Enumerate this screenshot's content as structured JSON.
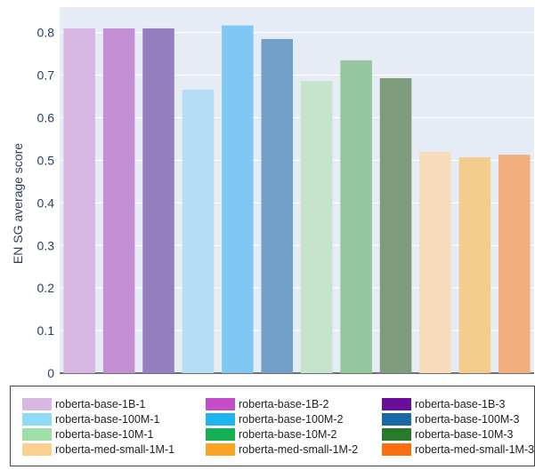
{
  "chart_data": {
    "type": "bar",
    "xlabel": "",
    "ylabel": "EN SG average score",
    "ylim": [
      0,
      0.86
    ],
    "yticks": [
      "0",
      "0.1",
      "0.2",
      "0.3",
      "0.4",
      "0.5",
      "0.6",
      "0.7",
      "0.8"
    ],
    "grid": true,
    "legend_position": "bottom",
    "series": [
      {
        "name": "roberta-base-1B-1",
        "value": 0.81,
        "color": "#d8b7e2"
      },
      {
        "name": "roberta-base-1B-2",
        "value": 0.81,
        "color": "#c58fd6"
      },
      {
        "name": "roberta-base-1B-3",
        "value": 0.81,
        "color": "#9480c1"
      },
      {
        "name": "roberta-base-100M-1",
        "value": 0.666,
        "color": "#b5def5"
      },
      {
        "name": "roberta-base-100M-2",
        "value": 0.817,
        "color": "#7ec8f2"
      },
      {
        "name": "roberta-base-100M-3",
        "value": 0.785,
        "color": "#73a0c9"
      },
      {
        "name": "roberta-base-10M-1",
        "value": 0.686,
        "color": "#c6e4cc"
      },
      {
        "name": "roberta-base-10M-2",
        "value": 0.735,
        "color": "#94c79d"
      },
      {
        "name": "roberta-base-10M-3",
        "value": 0.693,
        "color": "#7e9c7b"
      },
      {
        "name": "roberta-med-small-1M-1",
        "value": 0.52,
        "color": "#f6dcbb"
      },
      {
        "name": "roberta-med-small-1M-2",
        "value": 0.507,
        "color": "#f4cc8c"
      },
      {
        "name": "roberta-med-small-1M-3",
        "value": 0.513,
        "color": "#f2ae7d"
      }
    ]
  },
  "legend": {
    "items": [
      {
        "label": "roberta-base-1B-1",
        "color": "#d8b7e2"
      },
      {
        "label": "roberta-base-1B-2",
        "color": "#c44ec8"
      },
      {
        "label": "roberta-base-1B-3",
        "color": "#6a0e9a"
      },
      {
        "label": "roberta-base-100M-1",
        "color": "#8fdbf7"
      },
      {
        "label": "roberta-base-100M-2",
        "color": "#1fb3ef"
      },
      {
        "label": "roberta-base-100M-3",
        "color": "#1a67a6"
      },
      {
        "label": "roberta-base-10M-1",
        "color": "#9fdfa8"
      },
      {
        "label": "roberta-base-10M-2",
        "color": "#16b054"
      },
      {
        "label": "roberta-base-10M-3",
        "color": "#2a7a2c"
      },
      {
        "label": "roberta-med-small-1M-1",
        "color": "#fbcf8f"
      },
      {
        "label": "roberta-med-small-1M-2",
        "color": "#fca524"
      },
      {
        "label": "roberta-med-small-1M-3",
        "color": "#fc6f0f"
      }
    ]
  },
  "colors": {
    "plot_background": "#e5ecf6",
    "gridline": "#ffffff",
    "text": "#2a3f5f"
  }
}
